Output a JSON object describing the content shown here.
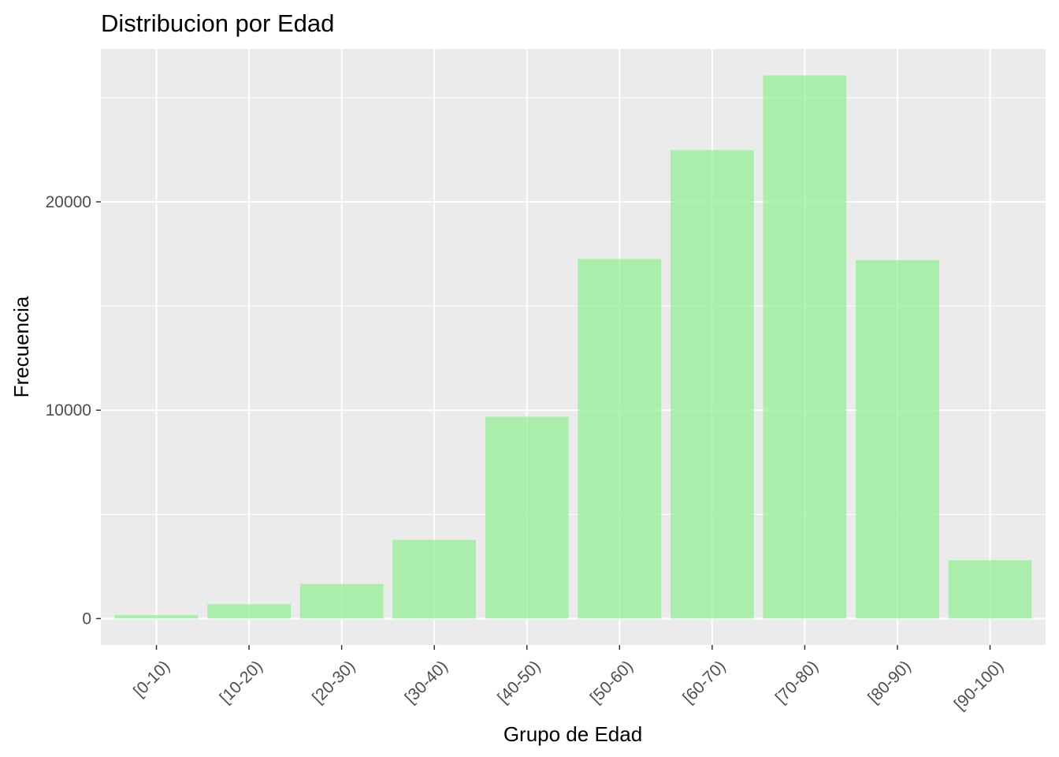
{
  "chart_data": {
    "type": "bar",
    "title": "Distribucion por Edad",
    "xlabel": "Grupo de Edad",
    "ylabel": "Frecuencia",
    "categories": [
      "[0-10)",
      "[10-20)",
      "[20-30)",
      "[30-40)",
      "[40-50)",
      "[50-60)",
      "[60-70)",
      "[70-80)",
      "[80-90)",
      "[90-100)"
    ],
    "values": [
      160,
      690,
      1660,
      3780,
      9690,
      17260,
      22480,
      26070,
      17200,
      2800
    ],
    "y_ticks": [
      0,
      10000,
      20000
    ],
    "y_tick_labels": [
      "0",
      "10000",
      "20000"
    ],
    "ylim": [
      -1270,
      27340
    ],
    "grid": true,
    "legend": "none",
    "colors": {
      "bar": "#90ee90",
      "bar_opacity": 0.7,
      "panel": "#ebebeb",
      "grid": "#ffffff"
    }
  }
}
